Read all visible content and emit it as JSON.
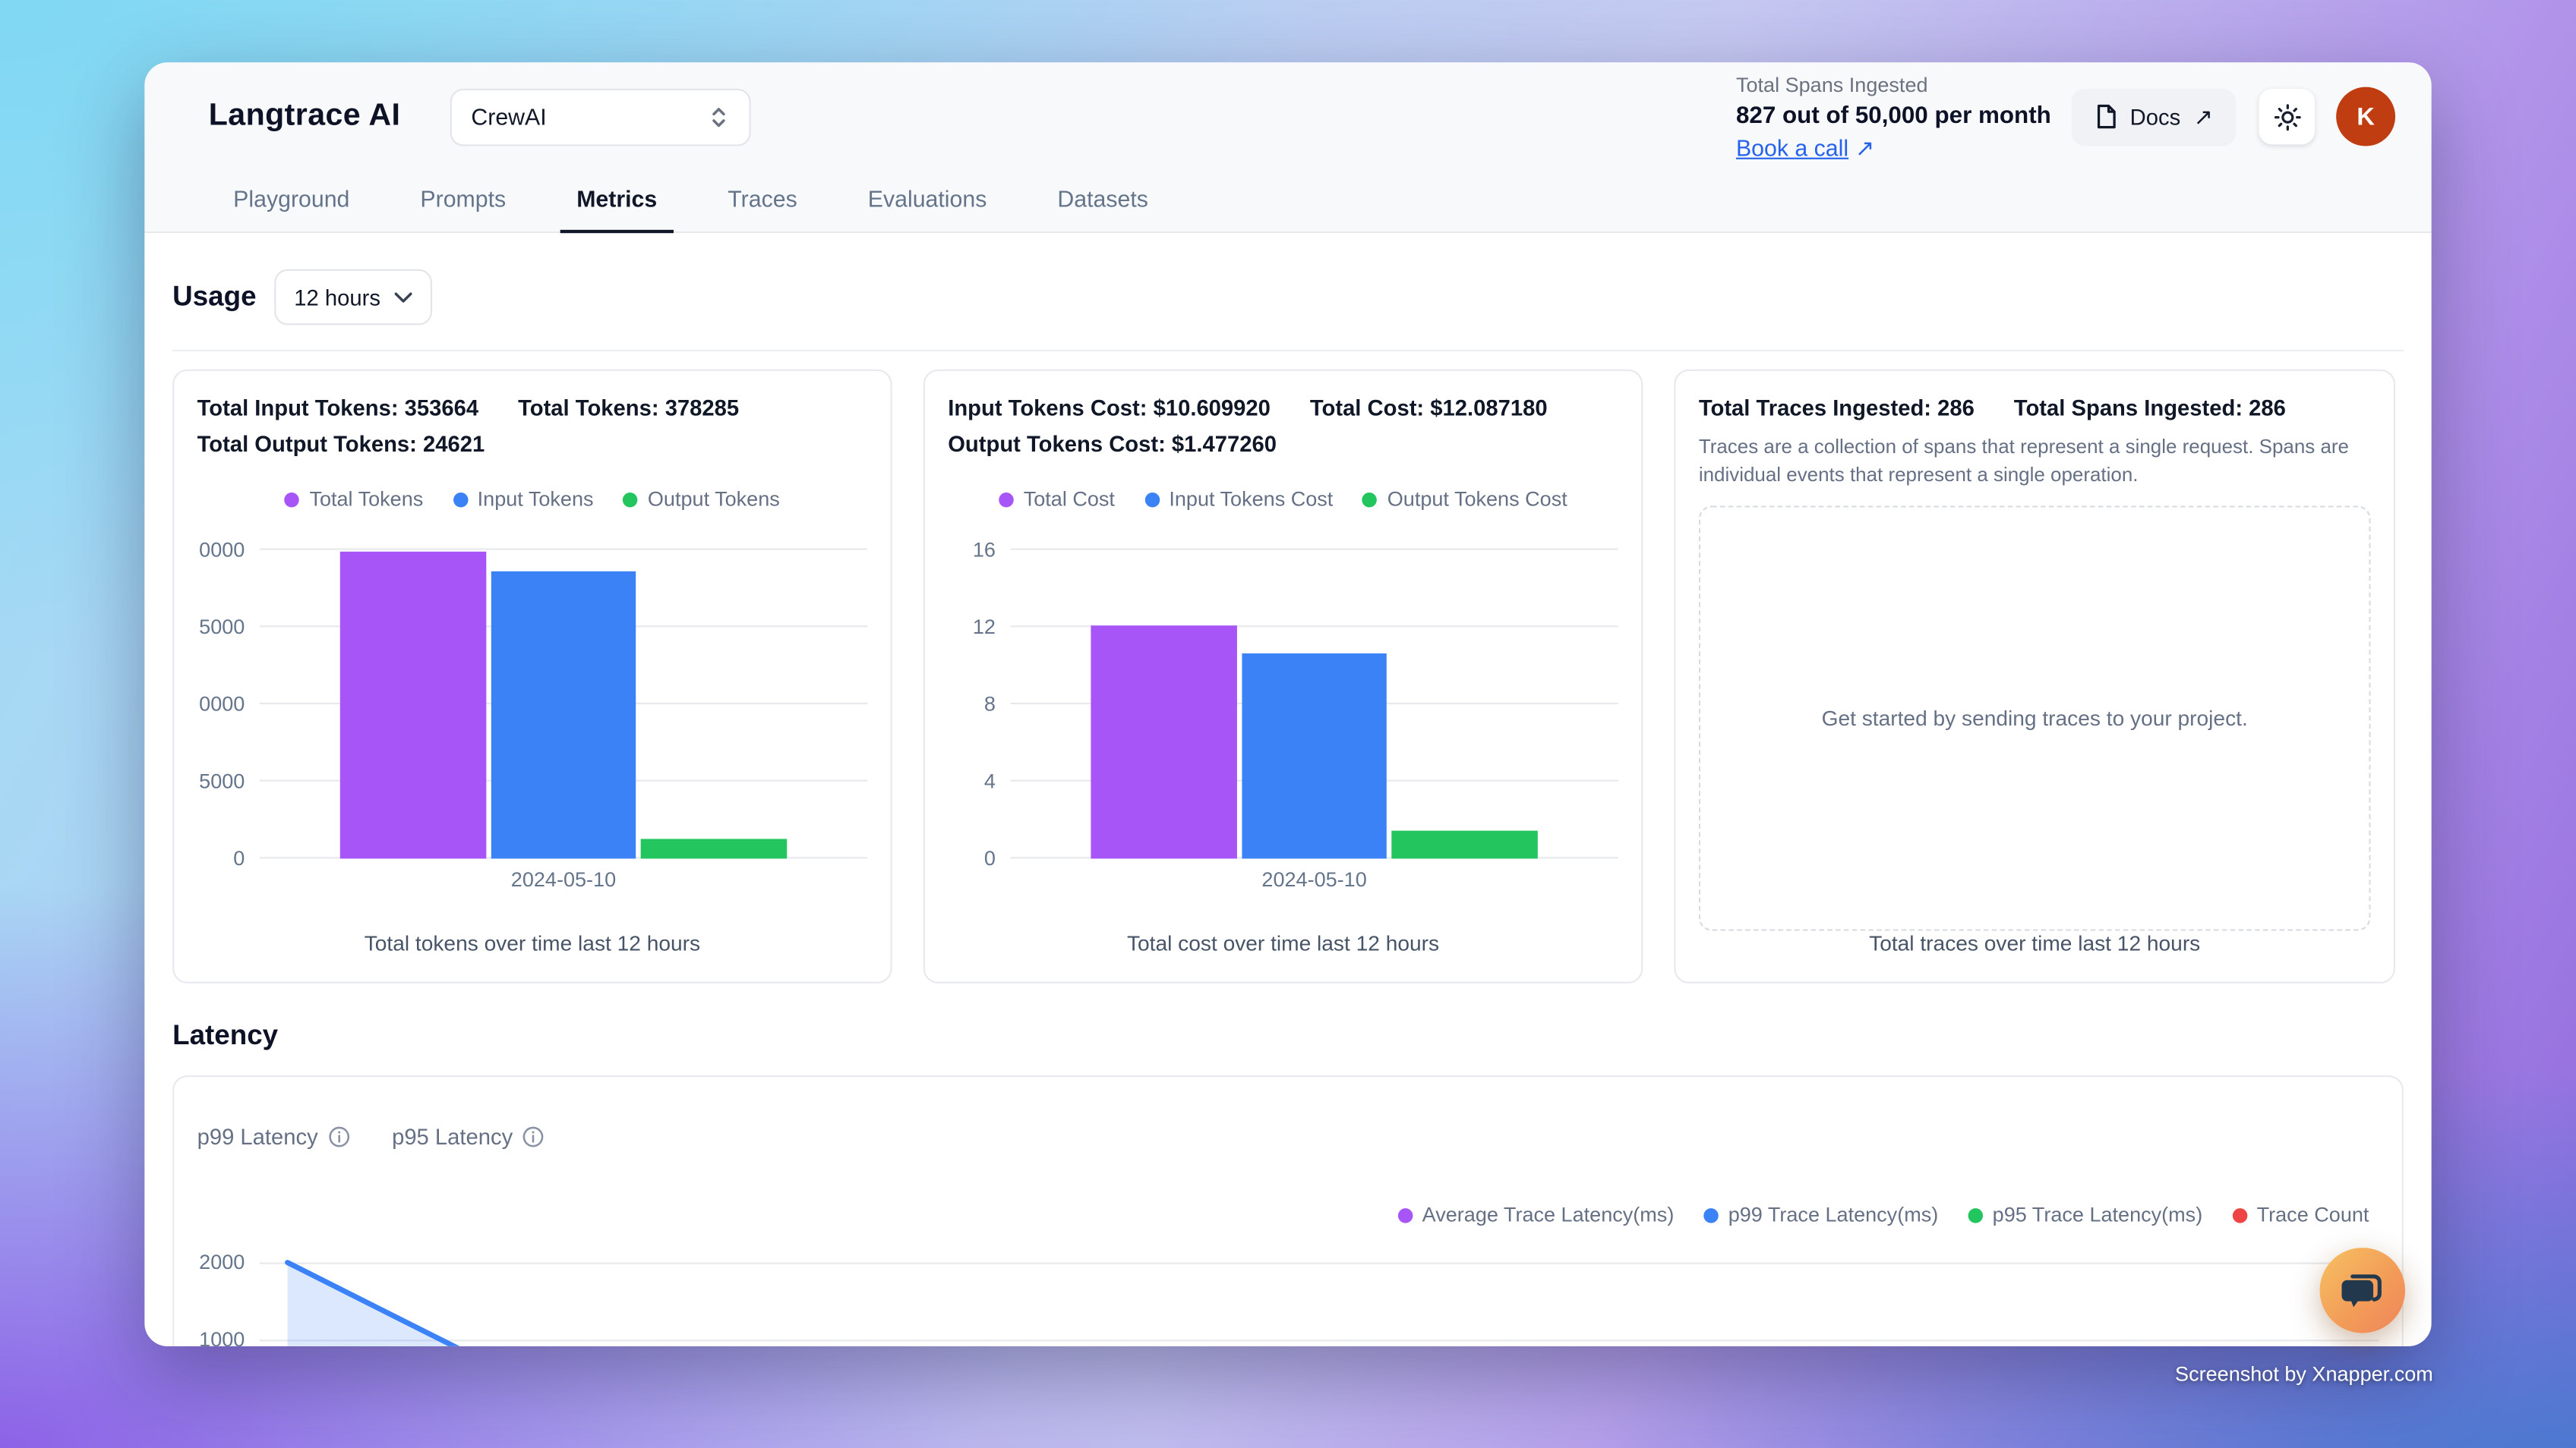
{
  "brand": {
    "name": "Langtrace AI"
  },
  "header": {
    "project_selector": {
      "value": "CrewAI"
    },
    "quota": {
      "label": "Total Spans Ingested",
      "value": "827 out of 50,000 per month"
    },
    "book_call_label": "Book a call",
    "docs_label": "Docs",
    "avatar_initial": "K"
  },
  "tabs": [
    {
      "label": "Playground",
      "active": false
    },
    {
      "label": "Prompts",
      "active": false
    },
    {
      "label": "Metrics",
      "active": true
    },
    {
      "label": "Traces",
      "active": false
    },
    {
      "label": "Evaluations",
      "active": false
    },
    {
      "label": "Datasets",
      "active": false
    }
  ],
  "usage": {
    "heading": "Usage",
    "range": "12 hours"
  },
  "cards": {
    "tokens": {
      "stats_line1": [
        "Total Input Tokens: 353664",
        "Total Tokens: 378285"
      ],
      "stats_line2": [
        "Total Output Tokens: 24621"
      ],
      "caption": "Total tokens over time last 12 hours"
    },
    "cost": {
      "stats_line1": [
        "Input Tokens Cost: $10.609920",
        "Total Cost: $12.087180"
      ],
      "stats_line2": [
        "Output Tokens Cost: $1.477260"
      ],
      "caption": "Total cost over time last 12 hours"
    },
    "traces": {
      "stats_line1": [
        "Total Traces Ingested: 286",
        "Total Spans Ingested: 286"
      ],
      "description": "Traces are a collection of spans that represent a single request. Spans are individual events that represent a single operation.",
      "empty_state": "Get started by sending traces to your project.",
      "caption": "Total traces over time last 12 hours"
    }
  },
  "latency": {
    "heading": "Latency",
    "metric_labels": [
      "p99 Latency",
      "p95 Latency"
    ]
  },
  "watermark": "Screenshot by Xnapper.com",
  "colors": {
    "purple": "#a855f7",
    "blue": "#3b82f6",
    "green": "#22c55e",
    "red": "#ef4444",
    "link_blue": "#2563eb",
    "avatar_bg": "#c03d12",
    "active_tab": "#0f1728"
  },
  "chart_data": [
    {
      "id": "tokens-bar",
      "type": "bar",
      "categories": [
        "2024-05-10"
      ],
      "series": [
        {
          "name": "Total Tokens",
          "value": 378285,
          "color": "#a855f7"
        },
        {
          "name": "Input Tokens",
          "value": 353664,
          "color": "#3b82f6"
        },
        {
          "name": "Output Tokens",
          "value": 24621,
          "color": "#22c55e"
        }
      ],
      "ylim": [
        0,
        380000
      ],
      "yticks": [
        0,
        95000,
        190000,
        285000,
        380000
      ],
      "ytick_labels_visible": [
        "0",
        "5000",
        "0000",
        "5000",
        "0000"
      ],
      "grid": true,
      "legend_position": "top",
      "xlabel": "",
      "ylabel": "",
      "caption": "Total tokens over time last 12 hours"
    },
    {
      "id": "cost-bar",
      "type": "bar",
      "categories": [
        "2024-05-10"
      ],
      "series": [
        {
          "name": "Total Cost",
          "value": 12.08718,
          "color": "#a855f7"
        },
        {
          "name": "Input Tokens Cost",
          "value": 10.60992,
          "color": "#3b82f6"
        },
        {
          "name": "Output Tokens Cost",
          "value": 1.47726,
          "color": "#22c55e"
        }
      ],
      "ylim": [
        0,
        16
      ],
      "yticks": [
        0,
        4,
        8,
        12,
        16
      ],
      "ytick_labels_visible": [
        "0",
        "4",
        "8",
        "12",
        "16"
      ],
      "grid": true,
      "legend_position": "top",
      "xlabel": "",
      "ylabel": "",
      "caption": "Total cost over time last 12 hours"
    },
    {
      "id": "latency-area",
      "type": "area",
      "series": [
        {
          "name": "Average Trace Latency(ms)",
          "color": "#a855f7"
        },
        {
          "name": "p99 Trace Latency(ms)",
          "color": "#3b82f6",
          "visible_points": [
            {
              "x_frac": 0.0,
              "value": 2000
            },
            {
              "x_frac": 0.148,
              "value": 0
            }
          ]
        },
        {
          "name": "p95 Trace Latency(ms)",
          "color": "#22c55e"
        },
        {
          "name": "Trace Count",
          "color": "#ef4444"
        }
      ],
      "yticks_visible": [
        2000,
        1000
      ],
      "grid": true,
      "legend_position": "top-right"
    }
  ]
}
